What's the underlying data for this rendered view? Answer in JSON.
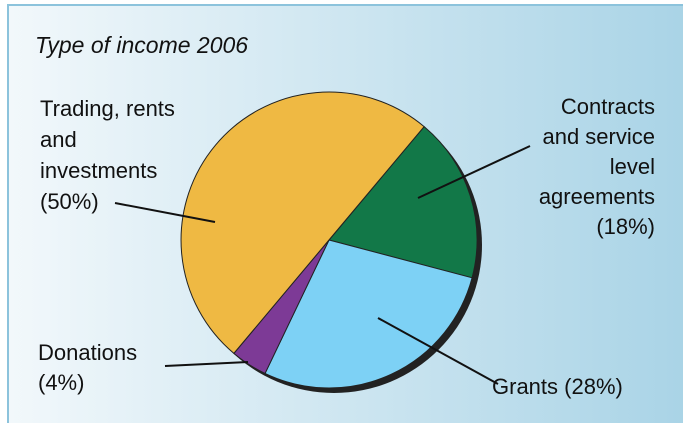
{
  "chart_data": {
    "type": "pie",
    "title": "Type of income 2006",
    "categories": [
      "Contracts\nand service\nlevel\nagreements",
      "Grants",
      "Donations\n",
      "Trading, rents\nand\ninvestments\n"
    ],
    "values": [
      18,
      28,
      4,
      50
    ],
    "value_labels": [
      "(18%)",
      "(28%)",
      "(4%)",
      "(50%)"
    ],
    "colors": [
      "#127848",
      "#7dd1f5",
      "#7d3a96",
      "#efb943"
    ]
  }
}
